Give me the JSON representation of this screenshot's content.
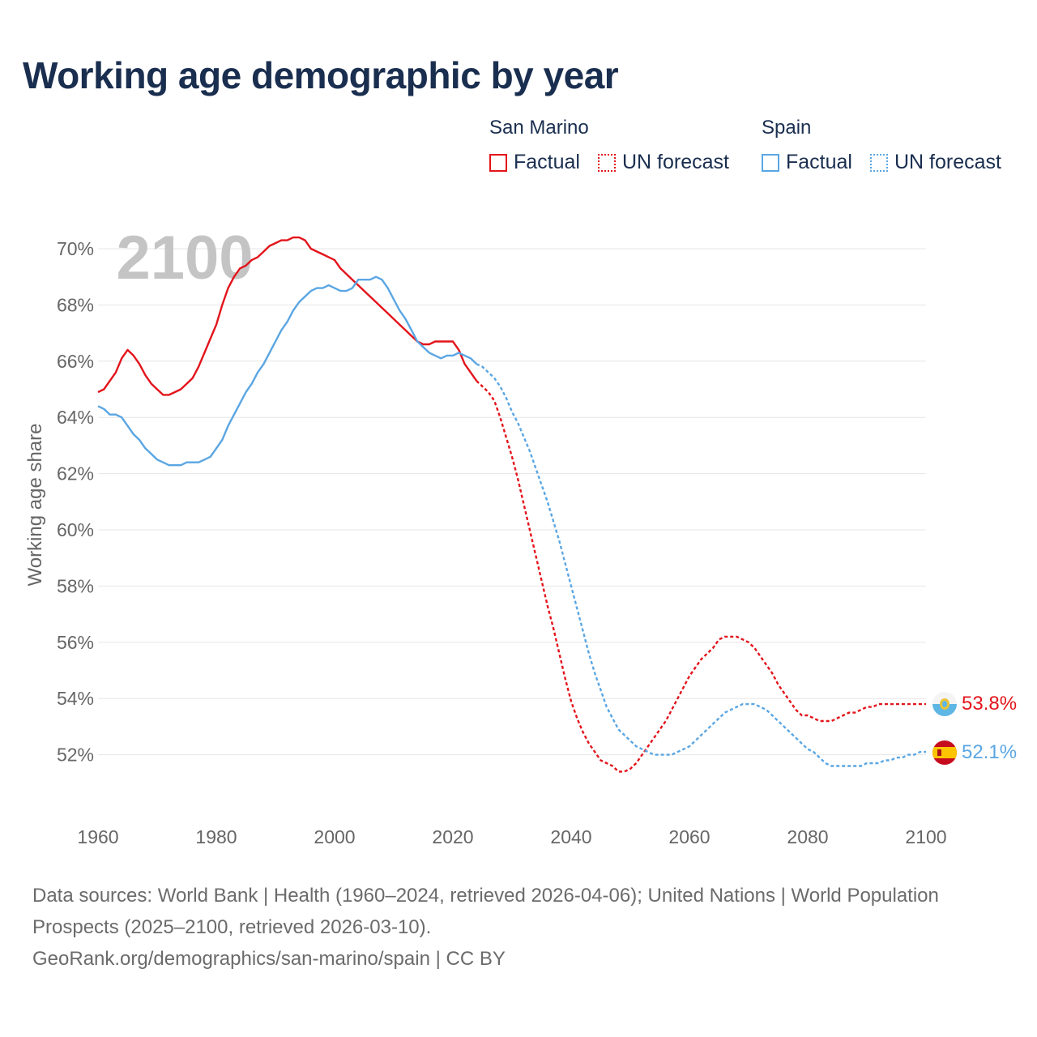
{
  "title": "Working age demographic by year",
  "legend": {
    "groups": [
      {
        "name": "San Marino",
        "factual_label": "Factual",
        "forecast_label": "UN forecast",
        "color": "#e3141b"
      },
      {
        "name": "Spain",
        "factual_label": "Factual",
        "forecast_label": "UN forecast",
        "color": "#5aa6e3"
      }
    ]
  },
  "year_display": "2100",
  "footer": {
    "line1": "Data sources: World Bank | Health (1960–2024, retrieved 2026-04-06); United Nations | World Population Prospects (2025–2100, retrieved 2026-03-10).",
    "line2": "GeoRank.org/demographics/san-marino/spain | CC BY"
  },
  "chart_data": {
    "type": "line",
    "title": "Working age demographic by year",
    "xlabel": "",
    "ylabel": "Working age share",
    "xlim": [
      1960,
      2100
    ],
    "ylim": [
      50.5,
      71
    ],
    "x_ticks": [
      1960,
      1980,
      2000,
      2020,
      2040,
      2060,
      2080,
      2100
    ],
    "x_tick_labels": [
      "1960",
      "1980",
      "2000",
      "2020",
      "2040",
      "2060",
      "2080",
      "2100"
    ],
    "y_ticks": [
      52,
      54,
      56,
      58,
      60,
      62,
      64,
      66,
      68,
      70
    ],
    "y_tick_labels": [
      "52%",
      "54%",
      "56%",
      "58%",
      "60%",
      "62%",
      "64%",
      "66%",
      "68%",
      "70%"
    ],
    "grid": true,
    "series": [
      {
        "name": "San Marino",
        "color": "#e3141b",
        "end_label": "53.8%",
        "factual": [
          [
            1960,
            64.9
          ],
          [
            1961,
            65.0
          ],
          [
            1962,
            65.3
          ],
          [
            1963,
            65.6
          ],
          [
            1964,
            66.1
          ],
          [
            1965,
            66.4
          ],
          [
            1966,
            66.2
          ],
          [
            1967,
            65.9
          ],
          [
            1968,
            65.5
          ],
          [
            1969,
            65.2
          ],
          [
            1970,
            65.0
          ],
          [
            1971,
            64.8
          ],
          [
            1972,
            64.8
          ],
          [
            1973,
            64.9
          ],
          [
            1974,
            65.0
          ],
          [
            1975,
            65.2
          ],
          [
            1976,
            65.4
          ],
          [
            1977,
            65.8
          ],
          [
            1978,
            66.3
          ],
          [
            1979,
            66.8
          ],
          [
            1980,
            67.3
          ],
          [
            1981,
            68.0
          ],
          [
            1982,
            68.6
          ],
          [
            1983,
            69.0
          ],
          [
            1984,
            69.3
          ],
          [
            1985,
            69.4
          ],
          [
            1986,
            69.6
          ],
          [
            1987,
            69.7
          ],
          [
            1988,
            69.9
          ],
          [
            1989,
            70.1
          ],
          [
            1990,
            70.2
          ],
          [
            1991,
            70.3
          ],
          [
            1992,
            70.3
          ],
          [
            1993,
            70.4
          ],
          [
            1994,
            70.4
          ],
          [
            1995,
            70.3
          ],
          [
            1996,
            70.0
          ],
          [
            1997,
            69.9
          ],
          [
            1998,
            69.8
          ],
          [
            1999,
            69.7
          ],
          [
            2000,
            69.6
          ],
          [
            2001,
            69.3
          ],
          [
            2002,
            69.1
          ],
          [
            2003,
            68.9
          ],
          [
            2004,
            68.7
          ],
          [
            2005,
            68.5
          ],
          [
            2006,
            68.3
          ],
          [
            2007,
            68.1
          ],
          [
            2008,
            67.9
          ],
          [
            2009,
            67.7
          ],
          [
            2010,
            67.5
          ],
          [
            2011,
            67.3
          ],
          [
            2012,
            67.1
          ],
          [
            2013,
            66.9
          ],
          [
            2014,
            66.7
          ],
          [
            2015,
            66.6
          ],
          [
            2016,
            66.6
          ],
          [
            2017,
            66.7
          ],
          [
            2018,
            66.7
          ],
          [
            2019,
            66.7
          ],
          [
            2020,
            66.7
          ],
          [
            2021,
            66.4
          ],
          [
            2022,
            65.9
          ],
          [
            2023,
            65.6
          ],
          [
            2024,
            65.3
          ]
        ],
        "forecast": [
          [
            2024,
            65.3
          ],
          [
            2025,
            65.1
          ],
          [
            2026,
            64.9
          ],
          [
            2027,
            64.6
          ],
          [
            2028,
            64.0
          ],
          [
            2029,
            63.3
          ],
          [
            2030,
            62.6
          ],
          [
            2031,
            61.8
          ],
          [
            2032,
            60.9
          ],
          [
            2033,
            60.0
          ],
          [
            2034,
            59.1
          ],
          [
            2035,
            58.2
          ],
          [
            2036,
            57.3
          ],
          [
            2037,
            56.5
          ],
          [
            2038,
            55.6
          ],
          [
            2039,
            54.7
          ],
          [
            2040,
            53.9
          ],
          [
            2041,
            53.3
          ],
          [
            2042,
            52.8
          ],
          [
            2043,
            52.4
          ],
          [
            2044,
            52.1
          ],
          [
            2045,
            51.8
          ],
          [
            2046,
            51.7
          ],
          [
            2047,
            51.6
          ],
          [
            2048,
            51.4
          ],
          [
            2049,
            51.4
          ],
          [
            2050,
            51.5
          ],
          [
            2051,
            51.7
          ],
          [
            2052,
            52.0
          ],
          [
            2053,
            52.3
          ],
          [
            2054,
            52.6
          ],
          [
            2055,
            52.9
          ],
          [
            2056,
            53.2
          ],
          [
            2057,
            53.6
          ],
          [
            2058,
            54.0
          ],
          [
            2059,
            54.4
          ],
          [
            2060,
            54.8
          ],
          [
            2061,
            55.1
          ],
          [
            2062,
            55.4
          ],
          [
            2063,
            55.6
          ],
          [
            2064,
            55.8
          ],
          [
            2065,
            56.1
          ],
          [
            2066,
            56.2
          ],
          [
            2067,
            56.2
          ],
          [
            2068,
            56.2
          ],
          [
            2069,
            56.1
          ],
          [
            2070,
            56.0
          ],
          [
            2071,
            55.8
          ],
          [
            2072,
            55.5
          ],
          [
            2073,
            55.2
          ],
          [
            2074,
            54.9
          ],
          [
            2075,
            54.5
          ],
          [
            2076,
            54.2
          ],
          [
            2077,
            53.9
          ],
          [
            2078,
            53.6
          ],
          [
            2079,
            53.4
          ],
          [
            2080,
            53.4
          ],
          [
            2081,
            53.3
          ],
          [
            2082,
            53.2
          ],
          [
            2083,
            53.2
          ],
          [
            2084,
            53.2
          ],
          [
            2085,
            53.3
          ],
          [
            2086,
            53.4
          ],
          [
            2087,
            53.5
          ],
          [
            2088,
            53.5
          ],
          [
            2089,
            53.6
          ],
          [
            2090,
            53.7
          ],
          [
            2091,
            53.7
          ],
          [
            2092,
            53.8
          ],
          [
            2093,
            53.8
          ],
          [
            2094,
            53.8
          ],
          [
            2095,
            53.8
          ],
          [
            2096,
            53.8
          ],
          [
            2097,
            53.8
          ],
          [
            2098,
            53.8
          ],
          [
            2099,
            53.8
          ],
          [
            2100,
            53.8
          ]
        ]
      },
      {
        "name": "Spain",
        "color": "#5aa6e3",
        "end_label": "52.1%",
        "factual": [
          [
            1960,
            64.4
          ],
          [
            1961,
            64.3
          ],
          [
            1962,
            64.1
          ],
          [
            1963,
            64.1
          ],
          [
            1964,
            64.0
          ],
          [
            1965,
            63.7
          ],
          [
            1966,
            63.4
          ],
          [
            1967,
            63.2
          ],
          [
            1968,
            62.9
          ],
          [
            1969,
            62.7
          ],
          [
            1970,
            62.5
          ],
          [
            1971,
            62.4
          ],
          [
            1972,
            62.3
          ],
          [
            1973,
            62.3
          ],
          [
            1974,
            62.3
          ],
          [
            1975,
            62.4
          ],
          [
            1976,
            62.4
          ],
          [
            1977,
            62.4
          ],
          [
            1978,
            62.5
          ],
          [
            1979,
            62.6
          ],
          [
            1980,
            62.9
          ],
          [
            1981,
            63.2
          ],
          [
            1982,
            63.7
          ],
          [
            1983,
            64.1
          ],
          [
            1984,
            64.5
          ],
          [
            1985,
            64.9
          ],
          [
            1986,
            65.2
          ],
          [
            1987,
            65.6
          ],
          [
            1988,
            65.9
          ],
          [
            1989,
            66.3
          ],
          [
            1990,
            66.7
          ],
          [
            1991,
            67.1
          ],
          [
            1992,
            67.4
          ],
          [
            1993,
            67.8
          ],
          [
            1994,
            68.1
          ],
          [
            1995,
            68.3
          ],
          [
            1996,
            68.5
          ],
          [
            1997,
            68.6
          ],
          [
            1998,
            68.6
          ],
          [
            1999,
            68.7
          ],
          [
            2000,
            68.6
          ],
          [
            2001,
            68.5
          ],
          [
            2002,
            68.5
          ],
          [
            2003,
            68.6
          ],
          [
            2004,
            68.9
          ],
          [
            2005,
            68.9
          ],
          [
            2006,
            68.9
          ],
          [
            2007,
            69.0
          ],
          [
            2008,
            68.9
          ],
          [
            2009,
            68.6
          ],
          [
            2010,
            68.2
          ],
          [
            2011,
            67.8
          ],
          [
            2012,
            67.5
          ],
          [
            2013,
            67.1
          ],
          [
            2014,
            66.7
          ],
          [
            2015,
            66.5
          ],
          [
            2016,
            66.3
          ],
          [
            2017,
            66.2
          ],
          [
            2018,
            66.1
          ],
          [
            2019,
            66.2
          ],
          [
            2020,
            66.2
          ],
          [
            2021,
            66.3
          ],
          [
            2022,
            66.2
          ],
          [
            2023,
            66.1
          ],
          [
            2024,
            65.9
          ]
        ],
        "forecast": [
          [
            2024,
            65.9
          ],
          [
            2025,
            65.8
          ],
          [
            2026,
            65.6
          ],
          [
            2027,
            65.4
          ],
          [
            2028,
            65.1
          ],
          [
            2029,
            64.7
          ],
          [
            2030,
            64.2
          ],
          [
            2031,
            63.8
          ],
          [
            2032,
            63.3
          ],
          [
            2033,
            62.8
          ],
          [
            2034,
            62.2
          ],
          [
            2035,
            61.6
          ],
          [
            2036,
            61.0
          ],
          [
            2037,
            60.3
          ],
          [
            2038,
            59.6
          ],
          [
            2039,
            58.8
          ],
          [
            2040,
            58.0
          ],
          [
            2041,
            57.2
          ],
          [
            2042,
            56.4
          ],
          [
            2043,
            55.6
          ],
          [
            2044,
            54.9
          ],
          [
            2045,
            54.3
          ],
          [
            2046,
            53.7
          ],
          [
            2047,
            53.3
          ],
          [
            2048,
            52.9
          ],
          [
            2049,
            52.7
          ],
          [
            2050,
            52.5
          ],
          [
            2051,
            52.3
          ],
          [
            2052,
            52.2
          ],
          [
            2053,
            52.1
          ],
          [
            2054,
            52.0
          ],
          [
            2055,
            52.0
          ],
          [
            2056,
            52.0
          ],
          [
            2057,
            52.0
          ],
          [
            2058,
            52.1
          ],
          [
            2059,
            52.2
          ],
          [
            2060,
            52.3
          ],
          [
            2061,
            52.5
          ],
          [
            2062,
            52.7
          ],
          [
            2063,
            52.9
          ],
          [
            2064,
            53.1
          ],
          [
            2065,
            53.3
          ],
          [
            2066,
            53.5
          ],
          [
            2067,
            53.6
          ],
          [
            2068,
            53.7
          ],
          [
            2069,
            53.8
          ],
          [
            2070,
            53.8
          ],
          [
            2071,
            53.8
          ],
          [
            2072,
            53.7
          ],
          [
            2073,
            53.6
          ],
          [
            2074,
            53.4
          ],
          [
            2075,
            53.2
          ],
          [
            2076,
            53.0
          ],
          [
            2077,
            52.8
          ],
          [
            2078,
            52.6
          ],
          [
            2079,
            52.4
          ],
          [
            2080,
            52.2
          ],
          [
            2081,
            52.1
          ],
          [
            2082,
            51.9
          ],
          [
            2083,
            51.7
          ],
          [
            2084,
            51.6
          ],
          [
            2085,
            51.6
          ],
          [
            2086,
            51.6
          ],
          [
            2087,
            51.6
          ],
          [
            2088,
            51.6
          ],
          [
            2089,
            51.6
          ],
          [
            2090,
            51.7
          ],
          [
            2091,
            51.7
          ],
          [
            2092,
            51.7
          ],
          [
            2093,
            51.8
          ],
          [
            2094,
            51.8
          ],
          [
            2095,
            51.9
          ],
          [
            2096,
            51.9
          ],
          [
            2097,
            52.0
          ],
          [
            2098,
            52.0
          ],
          [
            2099,
            52.1
          ],
          [
            2100,
            52.1
          ]
        ]
      }
    ]
  }
}
